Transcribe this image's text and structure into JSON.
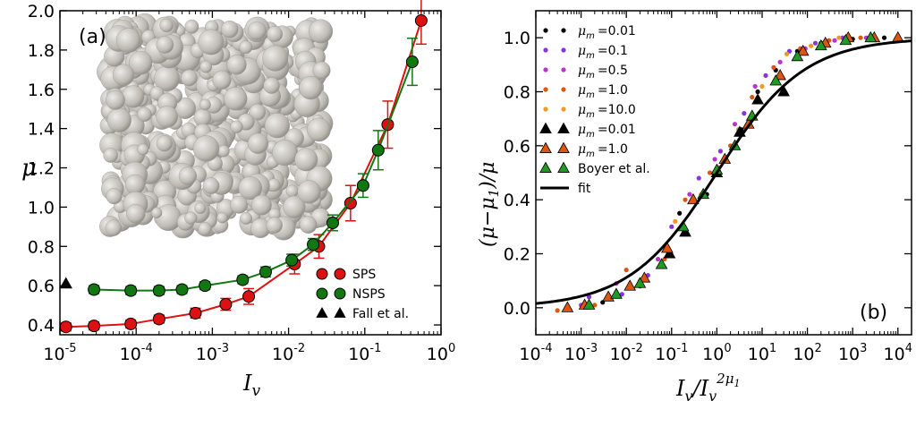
{
  "chart_data": [
    {
      "type": "scatter",
      "panel_label": "(a)",
      "xlabel": "I_v",
      "ylabel": "μ",
      "x_scale": "log",
      "xlim": [
        1e-05,
        1
      ],
      "ylim": [
        0.35,
        2.0
      ],
      "x_ticks": [
        {
          "value": 1e-05,
          "exp": "-5"
        },
        {
          "value": 0.0001,
          "exp": "-4"
        },
        {
          "value": 0.001,
          "exp": "-3"
        },
        {
          "value": 0.01,
          "exp": "-2"
        },
        {
          "value": 0.1,
          "exp": "-1"
        },
        {
          "value": 1,
          "exp": "0"
        }
      ],
      "y_ticks": [
        {
          "value": 0.4,
          "label": "0.4"
        },
        {
          "value": 0.6,
          "label": "0.6"
        },
        {
          "value": 0.8,
          "label": "0.8"
        },
        {
          "value": 1.0,
          "label": "1.0"
        },
        {
          "value": 1.2,
          "label": "1.2"
        },
        {
          "value": 1.4,
          "label": "1.4"
        },
        {
          "value": 1.6,
          "label": "1.6"
        },
        {
          "value": 1.8,
          "label": "1.8"
        },
        {
          "value": 2.0,
          "label": "2.0"
        }
      ],
      "legend_position": "bottom-right",
      "inset": "granular packing image (top-left)",
      "series": [
        {
          "name": "SPS",
          "marker": "circle",
          "color": "#dd1111",
          "connected": true,
          "x": [
            1.2e-05,
            2.8e-05,
            8.5e-05,
            0.0002,
            0.0006,
            0.0015,
            0.003,
            0.012,
            0.025,
            0.065,
            0.2,
            0.55
          ],
          "y": [
            0.39,
            0.395,
            0.405,
            0.43,
            0.46,
            0.505,
            0.545,
            0.71,
            0.8,
            1.02,
            1.42,
            1.95
          ],
          "err": [
            0.02,
            0.02,
            0.02,
            0.02,
            0.025,
            0.03,
            0.04,
            0.05,
            0.06,
            0.09,
            0.12,
            0.12
          ]
        },
        {
          "name": "NSPS",
          "marker": "circle",
          "color": "#117711",
          "connected": true,
          "x": [
            2.8e-05,
            8.5e-05,
            0.0002,
            0.0004,
            0.0008,
            0.0025,
            0.005,
            0.011,
            0.021,
            0.038,
            0.095,
            0.15,
            0.42
          ],
          "y": [
            0.58,
            0.575,
            0.575,
            0.58,
            0.6,
            0.63,
            0.67,
            0.73,
            0.81,
            0.92,
            1.11,
            1.29,
            1.74
          ],
          "err": [
            0.02,
            0.02,
            0.02,
            0.02,
            0.02,
            0.02,
            0.025,
            0.03,
            0.03,
            0.04,
            0.06,
            0.1,
            0.12
          ]
        },
        {
          "name": "Fall et al.",
          "marker": "triangle",
          "color": "#000000",
          "connected": false,
          "x": [
            1.2e-05
          ],
          "y": [
            0.61
          ]
        }
      ]
    },
    {
      "type": "scatter",
      "panel_label": "(b)",
      "xlabel": "I_v / I_v^{2μ_1}",
      "ylabel": "(μ−μ_1)/μ",
      "x_scale": "log",
      "xlim": [
        0.0001,
        20000.0
      ],
      "ylim": [
        -0.1,
        1.1
      ],
      "x_ticks": [
        {
          "value": 0.0001,
          "exp": "-4"
        },
        {
          "value": 0.001,
          "exp": "-3"
        },
        {
          "value": 0.01,
          "exp": "-2"
        },
        {
          "value": 0.1,
          "exp": "-1"
        },
        {
          "value": 1,
          "exp": "0"
        },
        {
          "value": 10,
          "exp": "1"
        },
        {
          "value": 100,
          "exp": "2"
        },
        {
          "value": 1000,
          "exp": "3"
        },
        {
          "value": 10000,
          "exp": "4"
        }
      ],
      "y_ticks": [
        {
          "value": 0.0,
          "label": "0.0"
        },
        {
          "value": 0.2,
          "label": "0.2"
        },
        {
          "value": 0.4,
          "label": "0.4"
        },
        {
          "value": 0.6,
          "label": "0.6"
        },
        {
          "value": 0.8,
          "label": "0.8"
        },
        {
          "value": 1.0,
          "label": "1.0"
        }
      ],
      "legend_position": "top-left",
      "series": [
        {
          "name": "μ_m = 0.01",
          "label_prefix": "μ",
          "label_sub": "m",
          "label_value": "=0.01",
          "marker": "dot",
          "color": "#000000",
          "x": [
            0.003,
            0.02,
            0.15,
            0.6,
            1.5,
            3.5,
            8,
            20,
            60,
            200,
            1000,
            5000
          ],
          "y": [
            0.02,
            0.08,
            0.35,
            0.42,
            0.55,
            0.66,
            0.8,
            0.88,
            0.95,
            0.98,
            0.995,
            1.0
          ]
        },
        {
          "name": "μ_m = 0.1",
          "label_prefix": "μ",
          "label_sub": "m",
          "label_value": "=0.1",
          "marker": "dot",
          "color": "#8833dd",
          "x": [
            0.0015,
            0.008,
            0.03,
            0.1,
            0.4,
            1.2,
            4,
            12,
            40,
            150,
            600,
            3000
          ],
          "y": [
            0.04,
            0.05,
            0.12,
            0.3,
            0.48,
            0.58,
            0.72,
            0.86,
            0.95,
            0.98,
            1.0,
            1.0
          ]
        },
        {
          "name": "μ_m = 0.5",
          "label_prefix": "μ",
          "label_sub": "m",
          "label_value": "=0.5",
          "marker": "dot",
          "color": "#bb33cc",
          "x": [
            0.001,
            0.006,
            0.05,
            0.25,
            0.9,
            2.5,
            7,
            25,
            90,
            400,
            2000
          ],
          "y": [
            0.01,
            0.09,
            0.18,
            0.42,
            0.55,
            0.68,
            0.82,
            0.91,
            0.96,
            0.99,
            1.0
          ]
        },
        {
          "name": "μ_m = 1.0",
          "label_prefix": "μ",
          "label_sub": "m",
          "label_value": "=1.0",
          "marker": "dot",
          "color": "#dd5511",
          "x": [
            0.0003,
            0.002,
            0.01,
            0.07,
            0.2,
            0.7,
            2,
            6,
            18,
            70,
            300,
            1500
          ],
          "y": [
            -0.01,
            0.01,
            0.14,
            0.18,
            0.4,
            0.5,
            0.6,
            0.78,
            0.89,
            0.96,
            0.99,
            1.0
          ]
        },
        {
          "name": "μ_m = 10.0",
          "label_prefix": "μ",
          "label_sub": "m",
          "label_value": "=10.0",
          "marker": "dot",
          "color": "#ee9922",
          "x": [
            0.0005,
            0.004,
            0.02,
            0.12,
            0.45,
            1.1,
            3,
            10,
            35,
            120,
            500,
            2500
          ],
          "y": [
            0.0,
            0.04,
            0.1,
            0.32,
            0.42,
            0.52,
            0.66,
            0.82,
            0.94,
            0.97,
            1.0,
            1.0
          ]
        },
        {
          "name": "μ_m = 0.01",
          "label_prefix": "μ",
          "label_sub": "m",
          "label_value": "=0.01",
          "marker": "triangle",
          "color": "#000000",
          "x": [
            0.09,
            0.2,
            1.0,
            3.2,
            8,
            30
          ],
          "y": [
            0.2,
            0.28,
            0.5,
            0.65,
            0.77,
            0.8
          ]
        },
        {
          "name": "μ_m = 1.0",
          "label_prefix": "μ",
          "label_sub": "m",
          "label_value": "=1.0",
          "marker": "triangle",
          "color": "#dd5511",
          "x": [
            0.0005,
            0.0012,
            0.004,
            0.012,
            0.025,
            0.08,
            0.3,
            1.5,
            5,
            25,
            80,
            250,
            800,
            3000,
            10000
          ],
          "y": [
            0.0,
            0.01,
            0.04,
            0.08,
            0.11,
            0.22,
            0.4,
            0.55,
            0.68,
            0.86,
            0.95,
            0.98,
            1.0,
            1.0,
            1.0
          ]
        },
        {
          "name": "Boyer et al.",
          "label_prefix": "",
          "label_sub": "",
          "label_value": "Boyer et al.",
          "marker": "triangle",
          "color": "#229922",
          "x": [
            0.0015,
            0.006,
            0.02,
            0.06,
            0.18,
            0.5,
            1.0,
            2.5,
            6,
            20,
            60,
            200,
            700,
            2500
          ],
          "y": [
            0.01,
            0.05,
            0.09,
            0.16,
            0.3,
            0.42,
            0.51,
            0.6,
            0.71,
            0.84,
            0.93,
            0.97,
            0.99,
            1.0
          ]
        },
        {
          "name": "fit",
          "label_prefix": "",
          "label_sub": "",
          "label_value": "fit",
          "marker": "line",
          "color": "#000000",
          "fit_function": "1/(1+(x/x0)^-a)",
          "x0": 1.0,
          "a": 0.45
        }
      ]
    }
  ]
}
